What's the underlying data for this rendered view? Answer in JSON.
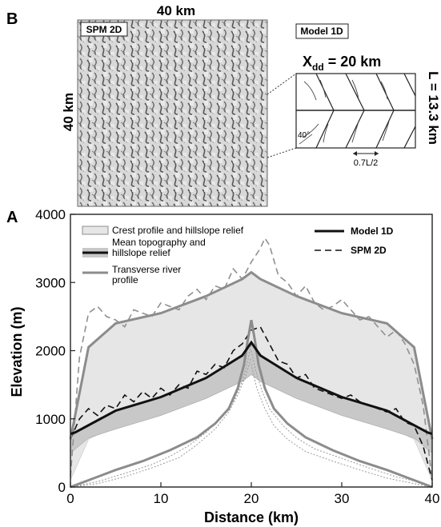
{
  "panel_b": {
    "letter": "B",
    "map_size_top": "40 km",
    "map_size_side": "40 km",
    "spm_badge": "SPM 2D",
    "model_badge": "Model 1D",
    "xdd_label_main": "X",
    "xdd_label_sub": "dd",
    "xdd_label_rest": " = 20 km",
    "length_label": "L = 13.3 km",
    "angle_label": "40°",
    "spacing_label": "0.7L/2"
  },
  "panel_a": {
    "letter": "A"
  },
  "chart_data": {
    "type": "line",
    "xlabel": "Distance (km)",
    "ylabel": "Elevation (m)",
    "xlim": [
      0,
      40
    ],
    "ylim": [
      0,
      4000
    ],
    "xticks": [
      "0",
      "10",
      "20",
      "30",
      "40"
    ],
    "yticks": [
      "0",
      "1000",
      "2000",
      "3000",
      "4000"
    ],
    "legend_left": [
      "Crest profile and hillslope relief",
      "Mean topography and hillslope relief",
      "Transverse river profile"
    ],
    "legend_right": [
      "Model 1D",
      "SPM 2D"
    ],
    "colors": {
      "crest_fill": "#e6e6e6",
      "mean_fill": "#c8c8c8",
      "model_gray": "#8c8c8c",
      "spm_gray": "#909090",
      "black": "#111111"
    },
    "model_crest": {
      "x": [
        0,
        2,
        5,
        10,
        15,
        19,
        20,
        21,
        25,
        30,
        35,
        38,
        40
      ],
      "y": [
        700,
        2050,
        2400,
        2550,
        2800,
        3050,
        3150,
        3050,
        2800,
        2550,
        2400,
        2050,
        700
      ]
    },
    "model_mean": {
      "x": [
        0,
        0.5,
        5,
        10,
        15,
        19,
        20,
        21,
        25,
        30,
        35,
        39.5,
        40
      ],
      "y": [
        780,
        800,
        1120,
        1320,
        1600,
        1930,
        2120,
        1930,
        1600,
        1320,
        1120,
        800,
        780
      ]
    },
    "model_mean_low": {
      "x": [
        0,
        2,
        5,
        10,
        15,
        19,
        20,
        21,
        25,
        30,
        35,
        38,
        40
      ],
      "y": [
        500,
        720,
        850,
        1050,
        1300,
        1550,
        1650,
        1550,
        1300,
        1050,
        850,
        720,
        500
      ]
    },
    "model_crest_low": {
      "x": [
        0,
        2,
        5,
        10,
        15,
        19,
        20,
        21,
        25,
        30,
        35,
        38,
        40
      ],
      "y": [
        100,
        700,
        900,
        1150,
        1400,
        1650,
        1750,
        1650,
        1400,
        1150,
        900,
        700,
        100
      ]
    },
    "model_river_left": {
      "x": [
        0,
        2,
        5,
        8,
        11,
        14,
        16,
        17.5,
        18.5,
        19.2,
        19.6,
        20
      ],
      "y": [
        0,
        100,
        250,
        380,
        540,
        730,
        930,
        1150,
        1450,
        1800,
        2150,
        2450
      ]
    },
    "model_river_right": {
      "x": [
        20,
        20.4,
        20.8,
        21.5,
        22.5,
        24,
        26,
        29,
        32,
        35,
        38,
        40
      ],
      "y": [
        2450,
        2150,
        1800,
        1450,
        1150,
        930,
        730,
        540,
        380,
        250,
        100,
        0
      ]
    },
    "spm_crest": {
      "x": [
        0,
        1,
        2,
        3,
        4,
        5,
        6,
        7,
        8,
        9,
        10,
        11,
        12,
        13,
        14,
        15,
        16,
        17,
        18,
        19,
        20,
        21,
        21.5,
        22,
        23,
        24,
        25,
        26,
        27,
        28,
        29,
        30,
        31,
        32,
        33,
        34,
        35,
        36,
        37,
        38,
        39,
        40
      ],
      "y": [
        150,
        1900,
        2550,
        2650,
        2500,
        2450,
        2350,
        2600,
        2550,
        2500,
        2700,
        2650,
        2600,
        2800,
        2900,
        2750,
        2950,
        2900,
        3200,
        3050,
        3300,
        3500,
        3650,
        3550,
        3100,
        3000,
        2800,
        2950,
        2700,
        2600,
        2650,
        2750,
        2600,
        2450,
        2500,
        2350,
        2200,
        2300,
        2100,
        1800,
        1200,
        100
      ]
    },
    "spm_mean": {
      "x": [
        0,
        1,
        2,
        3,
        4,
        5,
        6,
        7,
        8,
        9,
        10,
        11,
        12,
        13,
        14,
        15,
        16,
        17,
        18,
        19,
        20,
        21,
        22,
        23,
        24,
        25,
        26,
        27,
        28,
        29,
        30,
        31,
        32,
        33,
        34,
        35,
        36,
        37,
        38,
        39,
        40
      ],
      "y": [
        700,
        1000,
        1150,
        1050,
        1200,
        1150,
        1350,
        1250,
        1400,
        1300,
        1450,
        1350,
        1500,
        1450,
        1700,
        1650,
        1800,
        1750,
        2000,
        2100,
        2300,
        2350,
        2100,
        1850,
        1800,
        1600,
        1650,
        1450,
        1400,
        1350,
        1300,
        1350,
        1250,
        1200,
        1150,
        1100,
        1150,
        950,
        900,
        600,
        100
      ]
    },
    "spm_rivers": [
      {
        "x": [
          0,
          3,
          6,
          9,
          11,
          13,
          15,
          16.5,
          18,
          19,
          19.6,
          20
        ],
        "y": [
          0,
          80,
          200,
          330,
          450,
          600,
          800,
          1000,
          1250,
          1550,
          1850,
          2100
        ]
      },
      {
        "x": [
          0,
          3,
          6,
          9,
          12,
          14,
          16,
          17.5,
          18.5,
          19.3,
          20
        ],
        "y": [
          0,
          50,
          150,
          280,
          430,
          620,
          850,
          1100,
          1350,
          1600,
          1900
        ]
      },
      {
        "x": [
          20,
          20.5,
          21.2,
          22,
          23.5,
          25,
          27,
          30,
          33,
          36,
          39,
          40
        ],
        "y": [
          2000,
          1700,
          1400,
          1150,
          900,
          720,
          560,
          420,
          280,
          150,
          60,
          0
        ]
      },
      {
        "x": [
          20,
          20.6,
          21.5,
          22.5,
          24,
          26,
          29,
          32,
          35,
          38,
          40
        ],
        "y": [
          1800,
          1450,
          1150,
          900,
          700,
          520,
          380,
          250,
          130,
          50,
          0
        ]
      }
    ]
  }
}
